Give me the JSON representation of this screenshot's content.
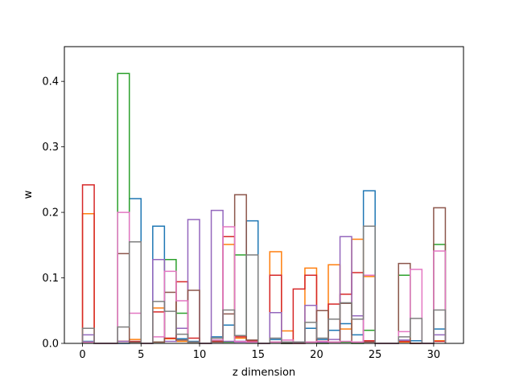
{
  "chart_data": {
    "type": "bar",
    "subtype": "step-histogram",
    "xlabel": "z dimension",
    "ylabel": "w",
    "xlim": [
      -1.55,
      32.55
    ],
    "ylim": [
      0,
      0.453
    ],
    "x_ticks": [
      0,
      5,
      10,
      15,
      20,
      25,
      30
    ],
    "x_tick_labels": [
      "0",
      "5",
      "10",
      "15",
      "20",
      "25",
      "30"
    ],
    "y_ticks": [
      0.0,
      0.1,
      0.2,
      0.3,
      0.4
    ],
    "y_tick_labels": [
      "0.0",
      "0.1",
      "0.2",
      "0.3",
      "0.4"
    ],
    "grid": false,
    "legend": "none",
    "bin_edges": [
      0,
      1,
      2,
      3,
      4,
      5,
      6,
      7,
      8,
      9,
      10,
      11,
      12,
      13,
      14,
      15,
      16,
      17,
      18,
      19,
      20,
      21,
      22,
      23,
      24,
      25,
      26,
      27,
      28,
      29,
      30,
      31
    ],
    "series": [
      {
        "color": "#1f77b4",
        "values": [
          0.003,
          0,
          0,
          0,
          0.221,
          0,
          0.179,
          0.007,
          0.007,
          0.003,
          0,
          0.01,
          0.028,
          0.003,
          0.187,
          0,
          0.006,
          0,
          0.002,
          0.023,
          0.006,
          0.02,
          0.03,
          0.013,
          0.233,
          0,
          0,
          0.003,
          0.004,
          0,
          0.022
        ]
      },
      {
        "color": "#ff7f0e",
        "values": [
          0.198,
          0,
          0,
          0.003,
          0.006,
          0,
          0.054,
          0.007,
          0.003,
          0.002,
          0,
          0.003,
          0.151,
          0.008,
          0.003,
          0,
          0.14,
          0.019,
          0,
          0.115,
          0.003,
          0.12,
          0.022,
          0.159,
          0.102,
          0,
          0,
          0.002,
          0,
          0,
          0.004
        ]
      },
      {
        "color": "#2ca02c",
        "values": [
          0.002,
          0,
          0,
          0.412,
          0.002,
          0,
          0.002,
          0.128,
          0.046,
          0.002,
          0,
          0.003,
          0.002,
          0.135,
          0.002,
          0,
          0.002,
          0,
          0,
          0.002,
          0,
          0.002,
          0.002,
          0,
          0.02,
          0,
          0,
          0.104,
          0,
          0,
          0.151
        ]
      },
      {
        "color": "#d62728",
        "values": [
          0.242,
          0,
          0,
          0.003,
          0.003,
          0,
          0.048,
          0.008,
          0.094,
          0.008,
          0,
          0.003,
          0.163,
          0.01,
          0.004,
          0,
          0.104,
          0.002,
          0.083,
          0.104,
          0.002,
          0.06,
          0.075,
          0.108,
          0.004,
          0,
          0,
          0.003,
          0,
          0,
          0.003
        ]
      },
      {
        "color": "#9467bd",
        "values": [
          0.013,
          0,
          0,
          0.003,
          0.002,
          0,
          0.128,
          0.003,
          0.023,
          0.189,
          0,
          0.203,
          0.003,
          0.002,
          0.002,
          0,
          0.047,
          0.002,
          0.002,
          0.058,
          0.002,
          0.006,
          0.163,
          0.042,
          0.002,
          0,
          0,
          0.005,
          0,
          0,
          0.013
        ]
      },
      {
        "color": "#8c564b",
        "values": [
          0.002,
          0,
          0,
          0.137,
          0.002,
          0,
          0.002,
          0.078,
          0.005,
          0.081,
          0,
          0.002,
          0.045,
          0.227,
          0.005,
          0,
          0.002,
          0,
          0,
          0.002,
          0.05,
          0.002,
          0.061,
          0.002,
          0.002,
          0,
          0,
          0.122,
          0,
          0,
          0.207
        ]
      },
      {
        "color": "#e377c2",
        "values": [
          0.002,
          0,
          0,
          0.2,
          0.046,
          0,
          0.01,
          0.11,
          0.065,
          0.002,
          0,
          0.005,
          0.178,
          0.003,
          0.002,
          0,
          0.002,
          0.005,
          0,
          0.002,
          0.003,
          0.002,
          0.003,
          0.002,
          0.104,
          0,
          0,
          0.018,
          0.113,
          0,
          0.141
        ]
      },
      {
        "color": "#7f7f7f",
        "values": [
          0.023,
          0,
          0,
          0.025,
          0.155,
          0,
          0.064,
          0.049,
          0.014,
          0.002,
          0,
          0.008,
          0.051,
          0.012,
          0.135,
          0,
          0.008,
          0.002,
          0.002,
          0.032,
          0.008,
          0.037,
          0.062,
          0.037,
          0.179,
          0,
          0,
          0.01,
          0.038,
          0,
          0.051
        ]
      }
    ]
  }
}
